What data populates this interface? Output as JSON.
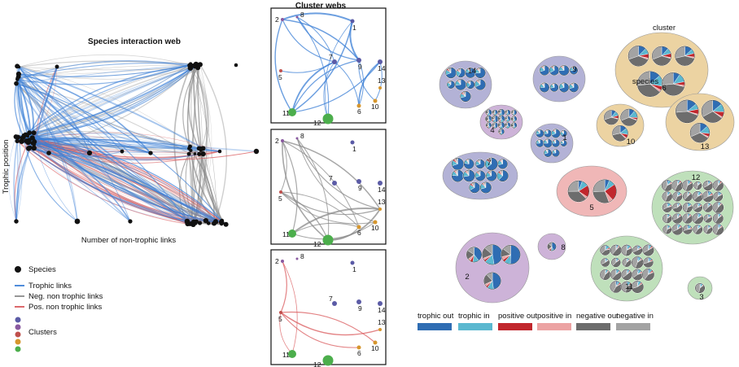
{
  "web": {
    "title": "Species interaction web",
    "y_axis": "Trophic position",
    "x_axis": "Number of non-trophic links"
  },
  "legend_left": {
    "species": "Species",
    "trophic": "Trophic links",
    "neg": "Neg. non trophic links",
    "pos": "Pos. non trophic links",
    "clusters": "Clusters"
  },
  "cluster_webs": {
    "title": "Cluster webs",
    "panels": [
      {
        "nodes": [
          {
            "id": "2",
            "c": "purple"
          },
          {
            "id": "8",
            "c": "purple"
          },
          {
            "id": "1",
            "c": "blue"
          },
          {
            "id": "7",
            "c": "blue"
          },
          {
            "id": "9",
            "c": "blue"
          },
          {
            "id": "14",
            "c": "blue"
          },
          {
            "id": "13",
            "c": "orange"
          },
          {
            "id": "5",
            "c": "red"
          },
          {
            "id": "6",
            "c": "orange"
          },
          {
            "id": "10",
            "c": "orange"
          },
          {
            "id": "11",
            "c": "green"
          },
          {
            "id": "12",
            "c": "green"
          }
        ],
        "link_type": "trophic"
      },
      {
        "nodes": [
          {
            "id": "2",
            "c": "purple"
          },
          {
            "id": "8",
            "c": "purple"
          },
          {
            "id": "1",
            "c": "blue"
          },
          {
            "id": "7",
            "c": "blue"
          },
          {
            "id": "9",
            "c": "blue"
          },
          {
            "id": "14",
            "c": "blue"
          },
          {
            "id": "13",
            "c": "orange"
          },
          {
            "id": "5",
            "c": "red"
          },
          {
            "id": "6",
            "c": "orange"
          },
          {
            "id": "10",
            "c": "orange"
          },
          {
            "id": "11",
            "c": "green"
          },
          {
            "id": "12",
            "c": "green"
          }
        ],
        "link_type": "negative"
      },
      {
        "nodes": [
          {
            "id": "2",
            "c": "purple"
          },
          {
            "id": "8",
            "c": "purple"
          },
          {
            "id": "1",
            "c": "blue"
          },
          {
            "id": "7",
            "c": "blue"
          },
          {
            "id": "9",
            "c": "blue"
          },
          {
            "id": "14",
            "c": "blue"
          },
          {
            "id": "13",
            "c": "orange"
          },
          {
            "id": "5",
            "c": "red"
          },
          {
            "id": "6",
            "c": "orange"
          },
          {
            "id": "10",
            "c": "orange"
          },
          {
            "id": "11",
            "c": "green"
          },
          {
            "id": "12",
            "c": "green"
          }
        ],
        "link_type": "positive"
      }
    ]
  },
  "cluster_map": {
    "cluster_label": "cluster",
    "species_label": "species",
    "bubbles": [
      {
        "id": "14",
        "color": "blue",
        "pies": 9
      },
      {
        "id": "9",
        "color": "blue",
        "pies": 8
      },
      {
        "id": "4",
        "color": "purple",
        "pies": 16
      },
      {
        "id": "1",
        "color": "blue",
        "pies": 10
      },
      {
        "id": "7",
        "color": "blue",
        "pies": 12
      },
      {
        "id": "6",
        "color": "orange",
        "pies": 5
      },
      {
        "id": "10",
        "color": "orange",
        "pies": 3
      },
      {
        "id": "13",
        "color": "orange",
        "pies": 3
      },
      {
        "id": "5",
        "color": "red",
        "pies": 2
      },
      {
        "id": "12",
        "color": "green",
        "pies": 30
      },
      {
        "id": "8",
        "color": "purple",
        "pies": 1
      },
      {
        "id": "2",
        "color": "purple",
        "pies": 4
      },
      {
        "id": "11",
        "color": "green",
        "pies": 18
      },
      {
        "id": "3",
        "color": "green",
        "pies": 1
      }
    ]
  },
  "legend_right": [
    {
      "label": "trophic out",
      "color": "#2f6db3"
    },
    {
      "label": "trophic in",
      "color": "#5bb8d0"
    },
    {
      "label": "positive out",
      "color": "#c1272d"
    },
    {
      "label": "positive in",
      "color": "#eca3a3"
    },
    {
      "label": "negative out",
      "color": "#6d6d6d"
    },
    {
      "label": "negative in",
      "color": "#a3a3a3"
    }
  ],
  "palette": {
    "blue": "#5b5ba6",
    "purple": "#8a5aa0",
    "red": "#c0504d",
    "orange": "#d6962d",
    "green": "#4cae4c",
    "bg_blue": "#b3b2d6",
    "bg_purple": "#cdb3d8",
    "bg_red": "#f0b7b7",
    "bg_orange": "#ecd3a2",
    "bg_green": "#bfe0bb",
    "trophic": "#3b7fd6",
    "negative": "#8a8a8a",
    "positive": "#d9585b"
  }
}
